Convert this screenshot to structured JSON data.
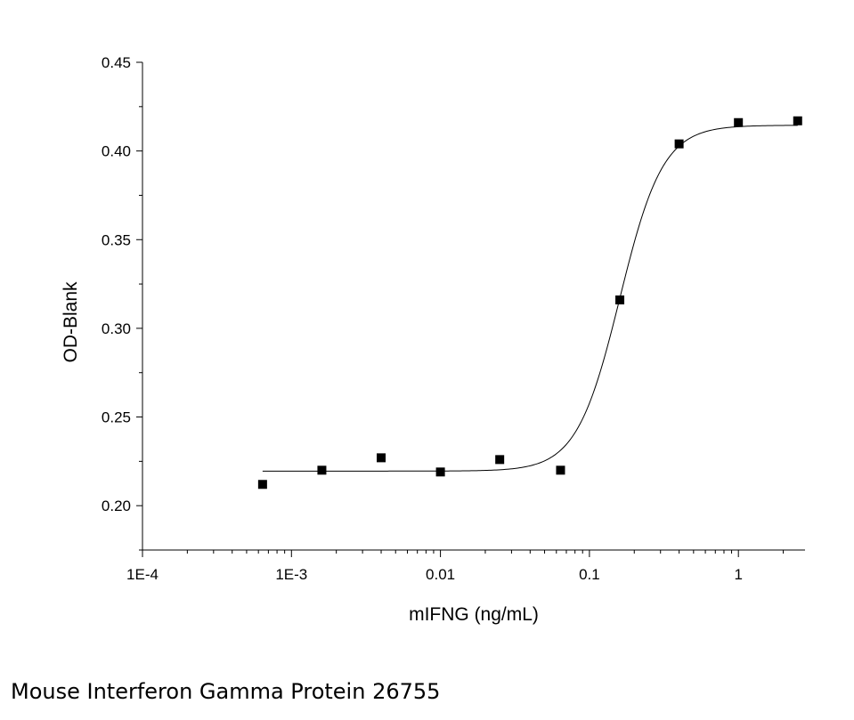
{
  "caption": "Mouse Interferon Gamma Protein 26755",
  "chart_data": {
    "type": "scatter",
    "title": "",
    "xlabel": "mIFNG (ng/mL)",
    "ylabel": "OD-Blank",
    "x_scale": "log",
    "xlim": [
      0.0001,
      2.8
    ],
    "ylim": [
      0.175,
      0.45
    ],
    "x_ticks": [
      0.0001,
      0.001,
      0.01,
      0.1,
      1
    ],
    "x_tick_labels": [
      "1E-4",
      "1E-3",
      "0.01",
      "0.1",
      "1"
    ],
    "y_ticks": [
      0.2,
      0.25,
      0.3,
      0.35,
      0.4,
      0.45
    ],
    "y_tick_labels": [
      "0.20",
      "0.25",
      "0.30",
      "0.35",
      "0.40",
      "0.45"
    ],
    "grid": false,
    "series": [
      {
        "marker": "square",
        "color": "#000000",
        "x": [
          0.00064,
          0.0016,
          0.004,
          0.01,
          0.025,
          0.064,
          0.16,
          0.4,
          1.0,
          2.5
        ],
        "y": [
          0.212,
          0.22,
          0.227,
          0.219,
          0.226,
          0.22,
          0.316,
          0.404,
          0.416,
          0.417
        ]
      }
    ],
    "fit": {
      "type": "4PL sigmoid",
      "color": "#000000",
      "bottom": 0.2195,
      "top": 0.4145,
      "ec50": 0.16,
      "hill": 3.0,
      "x_range": [
        0.00064,
        2.5
      ]
    }
  }
}
